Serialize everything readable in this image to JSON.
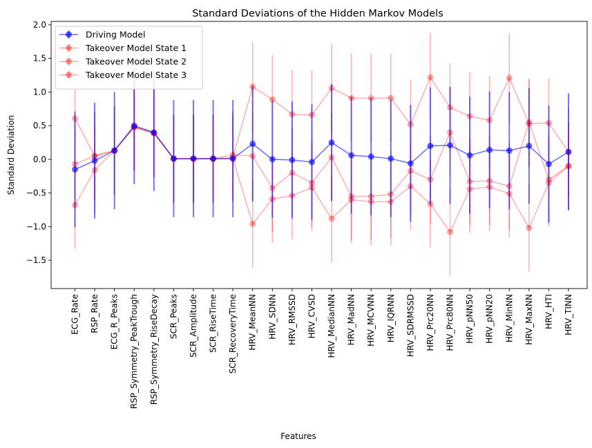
{
  "chart_data": {
    "type": "errorbar-line",
    "title": "Standard Deviations of the Hidden Markov Models",
    "xlabel": "Features",
    "ylabel": "Standard Deviation",
    "ylim": [
      -1.92,
      2.05
    ],
    "yticks": [
      -1.5,
      -1.0,
      -0.5,
      0.0,
      0.5,
      1.0,
      1.5,
      2.0
    ],
    "ytick_labels": [
      "−1.5",
      "−1.0",
      "−0.5",
      "0.0",
      "0.5",
      "1.0",
      "1.5",
      "2.0"
    ],
    "legend_position": "top-left",
    "grid": false,
    "categories": [
      "ECG_Rate",
      "RSP_Rate",
      "ECG_R_Peaks",
      "RSP_Symmetry_PeakTrough",
      "RSP_Symmetry_RiseDecay",
      "SCR_Peaks",
      "SCR_Amplitude",
      "SCR_RiseTime",
      "SCR_RecoveryTime",
      "HRV_MeanNN",
      "HRV_SDNN",
      "HRV_RMSSD",
      "HRV_CVSD",
      "HRV_MedianNN",
      "HRV_MadNN",
      "HRV_MCVNN",
      "HRV_IQRNN",
      "HRV_SDRMSSD",
      "HRV_Prc20NN",
      "HRV_Prc80NN",
      "HRV_pNN50",
      "HRV_pNN20",
      "HRV_MinNN",
      "HRV_MaxNN",
      "HRV_HTI",
      "HRV_TINN"
    ],
    "series": [
      {
        "name": "Driving Model",
        "color": "#0000ff",
        "values": [
          -0.15,
          -0.02,
          0.13,
          0.5,
          0.4,
          0.01,
          0.01,
          0.01,
          0.01,
          0.23,
          0.0,
          -0.01,
          -0.04,
          0.25,
          0.06,
          0.04,
          0.01,
          -0.06,
          0.2,
          0.21,
          0.06,
          0.14,
          0.13,
          0.2,
          -0.07,
          0.11
        ],
        "errors": [
          0.86,
          0.86,
          0.87,
          0.87,
          0.87,
          0.87,
          0.87,
          0.87,
          0.87,
          0.86,
          0.87,
          0.87,
          0.86,
          0.87,
          0.87,
          0.87,
          0.87,
          0.87,
          0.87,
          0.87,
          0.87,
          0.87,
          0.87,
          0.86,
          0.87,
          0.87
        ]
      },
      {
        "name": "Takeover Model State 1",
        "color": "#ff0000",
        "values": [
          0.61,
          0.05,
          0.13,
          0.48,
          0.39,
          0.01,
          0.01,
          0.01,
          0.03,
          1.08,
          0.89,
          0.67,
          0.66,
          1.06,
          0.91,
          0.91,
          0.91,
          0.52,
          1.22,
          0.77,
          0.64,
          0.58,
          1.21,
          0.53,
          0.54,
          0.11
        ],
        "errors": [
          0.66,
          0.66,
          0.66,
          0.66,
          0.66,
          0.66,
          0.66,
          0.66,
          0.66,
          0.66,
          0.66,
          0.66,
          0.66,
          0.66,
          0.66,
          0.66,
          0.66,
          0.66,
          0.66,
          0.66,
          0.66,
          0.66,
          0.66,
          0.66,
          0.66,
          0.66
        ]
      },
      {
        "name": "Takeover Model State 2",
        "color": "#ff0000",
        "values": [
          -0.07,
          0.05,
          0.13,
          0.48,
          0.39,
          0.01,
          0.01,
          0.01,
          0.07,
          0.05,
          -0.43,
          -0.2,
          -0.35,
          0.03,
          -0.55,
          -0.55,
          -0.52,
          -0.17,
          -0.3,
          0.4,
          -0.33,
          -0.32,
          -0.4,
          0.55,
          -0.3,
          -0.1
        ],
        "errors": [
          0.65,
          0.65,
          0.65,
          0.65,
          0.65,
          0.65,
          0.65,
          0.65,
          0.65,
          0.65,
          0.65,
          0.65,
          0.65,
          0.65,
          0.65,
          0.65,
          0.65,
          0.65,
          0.65,
          0.65,
          0.65,
          0.65,
          0.65,
          0.65,
          0.65,
          0.65
        ]
      },
      {
        "name": "Takeover Model State 3",
        "color": "#ff0000",
        "values": [
          -0.68,
          -0.16,
          0.13,
          0.48,
          0.39,
          0.01,
          0.01,
          0.01,
          0.01,
          -0.96,
          -0.59,
          -0.54,
          -0.42,
          -0.88,
          -0.6,
          -0.63,
          -0.63,
          -0.4,
          -0.66,
          -1.08,
          -0.44,
          -0.41,
          -0.51,
          -1.02,
          -0.35,
          -0.1
        ],
        "errors": [
          0.65,
          0.65,
          0.65,
          0.65,
          0.65,
          0.65,
          0.65,
          0.65,
          0.65,
          0.65,
          0.65,
          0.65,
          0.65,
          0.65,
          0.65,
          0.65,
          0.65,
          0.65,
          0.65,
          0.65,
          0.65,
          0.65,
          0.65,
          0.65,
          0.65,
          0.65
        ]
      }
    ]
  }
}
